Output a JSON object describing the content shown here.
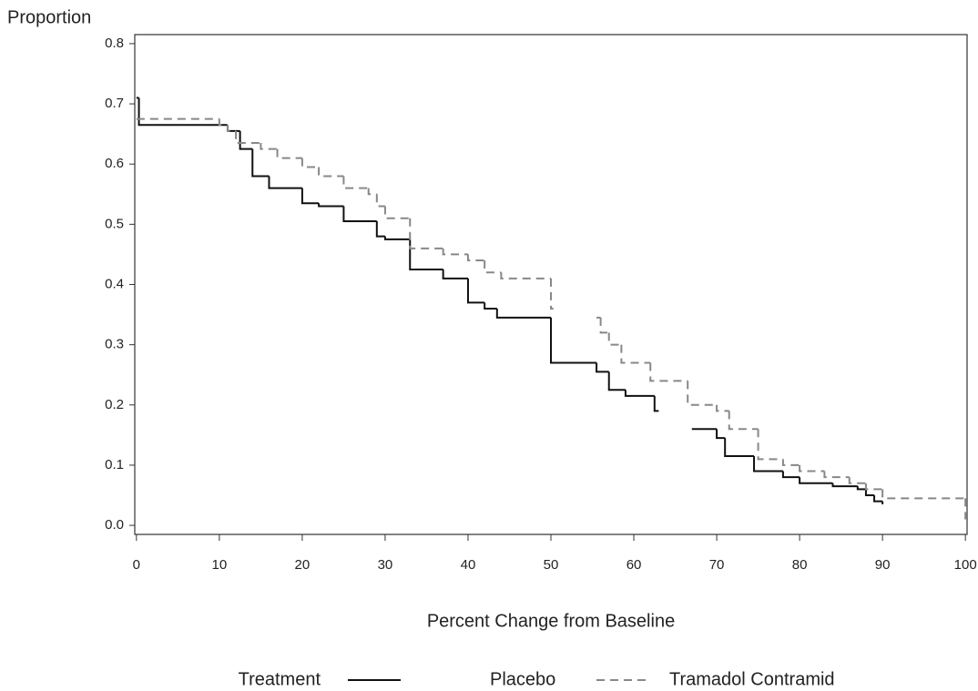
{
  "chart_data": {
    "type": "step",
    "y_label": "Proportion",
    "x_label": "Percent Change from Baseline",
    "legend_title": "Treatment",
    "xlim": [
      -0.2,
      100.2
    ],
    "xticks": [
      0,
      10,
      20,
      30,
      40,
      50,
      60,
      70,
      80,
      90,
      100
    ],
    "ylim": [
      -0.015,
      0.815
    ],
    "yticks": [
      {
        "value": 0,
        "label": "0.0"
      },
      0.1,
      0.2,
      0.3,
      0.4,
      0.5,
      0.6,
      0.7,
      0.8
    ],
    "series": [
      {
        "name": "Placebo",
        "color": "#111111",
        "line_style": "solid",
        "x": [
          0,
          0.3,
          11,
          12.5,
          14,
          16,
          20,
          22,
          25,
          29,
          30,
          33,
          37,
          40,
          42,
          43.5,
          50,
          55.5,
          57,
          59,
          62.5,
          63,
          67,
          70,
          71,
          74.5,
          78,
          80,
          84,
          87,
          88,
          89,
          90
        ],
        "values": [
          0.71,
          0.665,
          0.655,
          0.625,
          0.58,
          0.56,
          0.535,
          0.53,
          0.505,
          0.48,
          0.475,
          0.425,
          0.41,
          0.37,
          0.36,
          0.345,
          0.27,
          0.255,
          0.225,
          0.215,
          0.19,
          null,
          0.16,
          0.145,
          0.115,
          0.09,
          0.08,
          0.07,
          0.065,
          0.06,
          0.05,
          0.04,
          0.035
        ]
      },
      {
        "name": "Tramadol Contramid",
        "color": "#888888",
        "line_style": "dashed",
        "x": [
          0,
          10,
          11,
          12,
          15,
          17,
          20,
          22,
          25,
          28,
          29,
          30,
          33,
          37,
          40,
          42,
          44,
          50,
          50.3,
          55.5,
          56,
          57,
          58.5,
          62,
          66.5,
          70,
          71.5,
          75,
          78,
          80,
          83,
          86,
          88,
          90,
          100
        ],
        "values": [
          0.675,
          0.665,
          0.655,
          0.635,
          0.625,
          0.61,
          0.595,
          0.58,
          0.56,
          0.55,
          0.53,
          0.51,
          0.46,
          0.45,
          0.44,
          0.42,
          0.41,
          0.36,
          null,
          0.345,
          0.32,
          0.3,
          0.27,
          0.24,
          0.2,
          0.19,
          0.16,
          0.11,
          0.1,
          0.09,
          0.08,
          0.07,
          0.06,
          0.045,
          0.01
        ]
      }
    ]
  }
}
